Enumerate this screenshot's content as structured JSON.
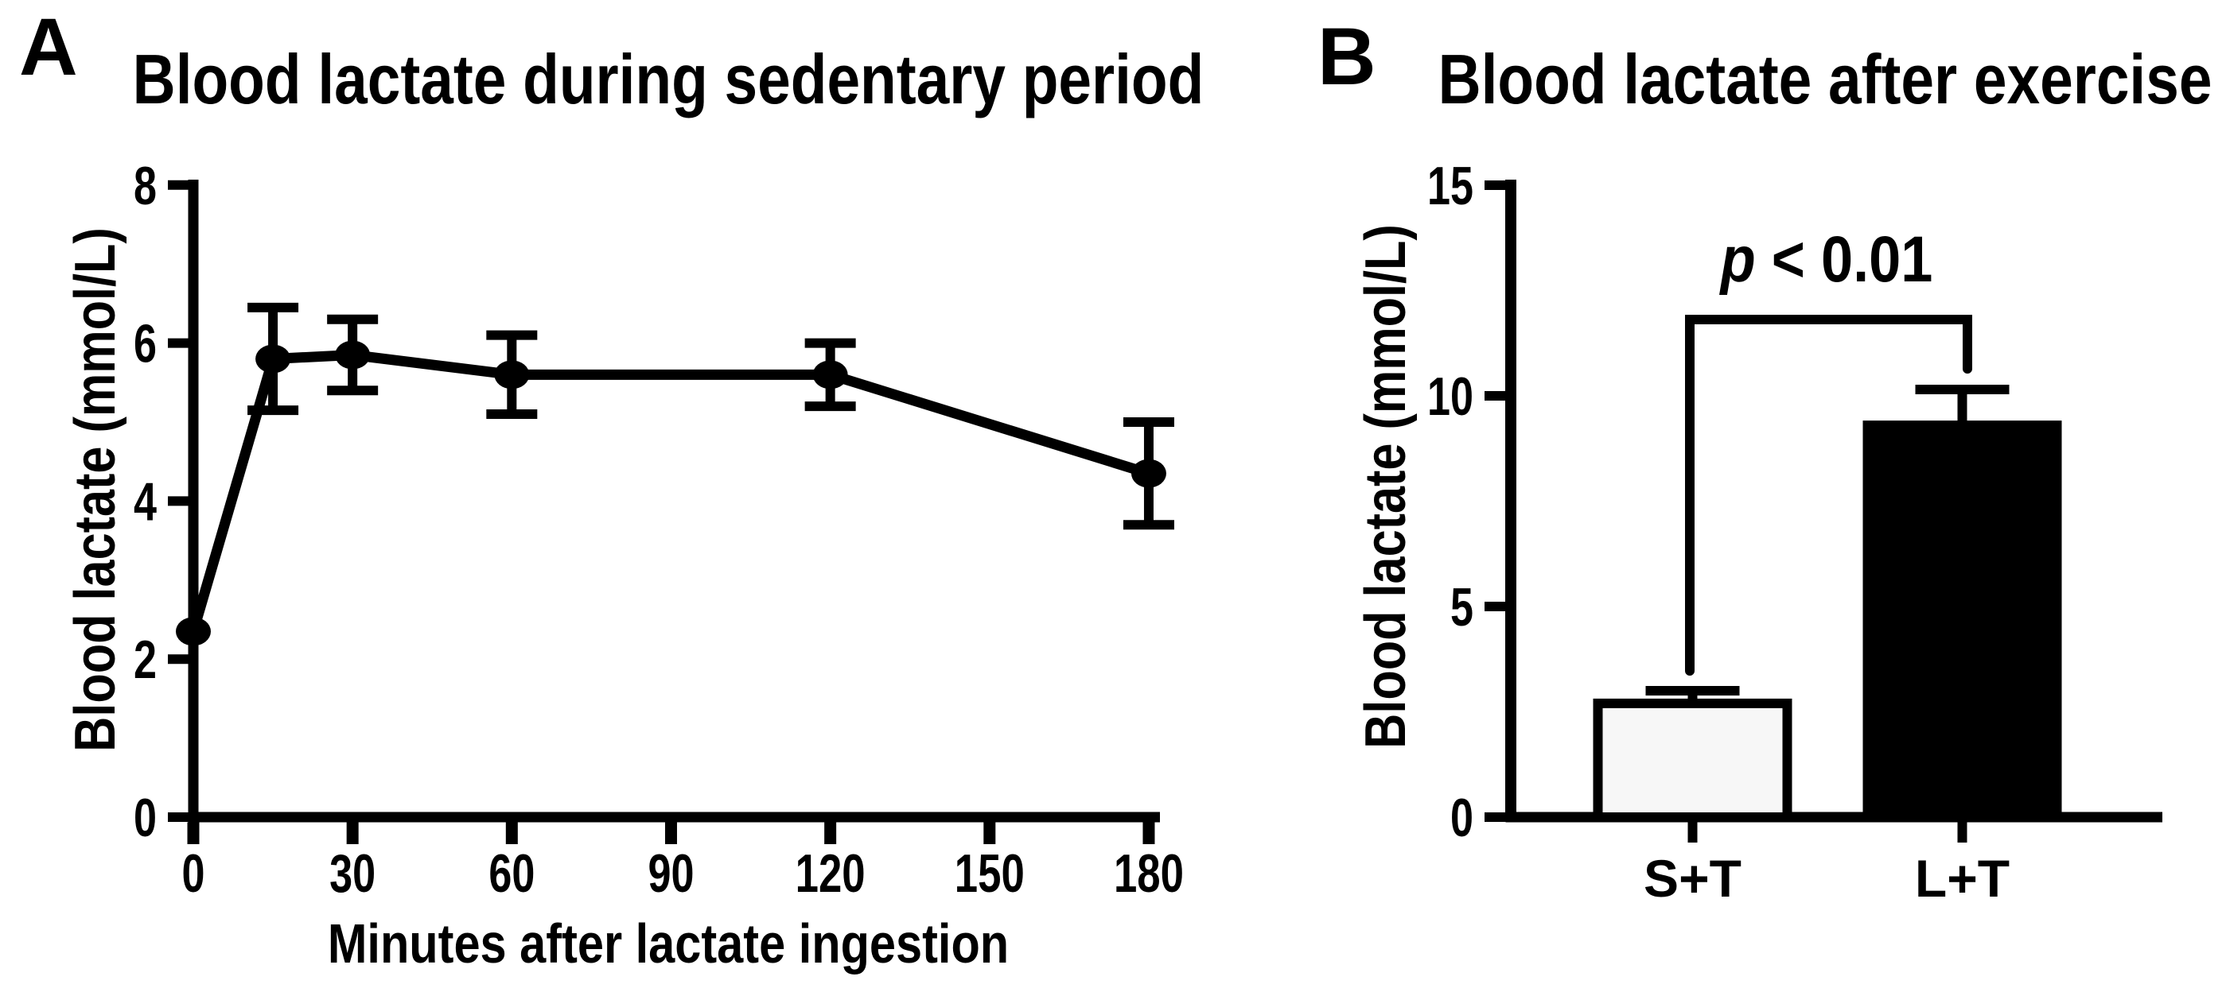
{
  "colors": {
    "ink": "#000000",
    "background": "#ffffff",
    "bar_light_fill": "#f7f7f7",
    "bar_dark_fill": "#000000"
  },
  "annotation": {
    "p_symbol": "p",
    "comparison": " < 0.01"
  },
  "chart_data": [
    {
      "panel": "A",
      "type": "line",
      "title": "Blood lactate during sedentary period",
      "xlabel": "Minutes after lactate ingestion",
      "ylabel": "Blood lactate (mmol/L)",
      "x": [
        0,
        15,
        30,
        60,
        120,
        180
      ],
      "y": [
        2.35,
        5.8,
        5.85,
        5.6,
        5.6,
        4.35
      ],
      "yerr": [
        0,
        0.65,
        0.45,
        0.5,
        0.4,
        0.65
      ],
      "xticks": [
        0,
        30,
        60,
        90,
        120,
        150,
        180
      ],
      "yticks": [
        0,
        2,
        4,
        6,
        8
      ],
      "xlim": [
        0,
        182
      ],
      "ylim": [
        0,
        8
      ],
      "grid": false,
      "legend": null,
      "marker": "filled-ellipse",
      "series_color": "#000000"
    },
    {
      "panel": "B",
      "type": "bar",
      "title": "Blood lactate after exercise",
      "ylabel": "Blood lactate (mmol/L)",
      "categories": [
        "S+T",
        "L+T"
      ],
      "values": [
        2.7,
        9.3
      ],
      "yerr": [
        0.3,
        0.85
      ],
      "yticks": [
        0,
        5,
        10,
        15
      ],
      "ylim": [
        0,
        15
      ],
      "grid": false,
      "legend": null,
      "bar_colors": [
        "#f7f7f7",
        "#000000"
      ],
      "significance": {
        "text": "p < 0.01",
        "between": [
          "S+T",
          "L+T"
        ]
      }
    }
  ]
}
